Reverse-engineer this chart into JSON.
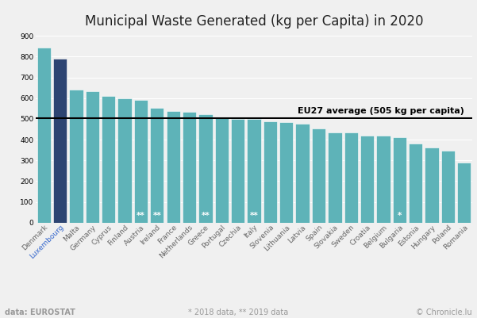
{
  "title": "Municipal Waste Generated (kg per Capita) in 2020",
  "categories": [
    "Denmark",
    "Luxembourg",
    "Malta",
    "Germany",
    "Cyprus",
    "Finland",
    "Austria",
    "Ireland",
    "France",
    "Netherlands",
    "Greece",
    "Portugal",
    "Czechia",
    "Italy",
    "Slovenia",
    "Lithuania",
    "Latvia",
    "Spain",
    "Slovakia",
    "Sweden",
    "Croatia",
    "Belgium",
    "Bulgaria",
    "Estonia",
    "Hungary",
    "Poland",
    "Romania"
  ],
  "values": [
    845,
    790,
    643,
    632,
    609,
    601,
    592,
    554,
    537,
    534,
    524,
    506,
    500,
    500,
    488,
    483,
    477,
    455,
    435,
    433,
    420,
    418,
    410,
    383,
    363,
    347,
    290
  ],
  "bar_color_teal": "#5eb3b8",
  "bar_color_highlight": "#2d4472",
  "highlight_index": 1,
  "eu27_average": 505,
  "eu27_label": "EU27 average (505 kg per capita)",
  "annotations": {
    "6": "**",
    "7": "**",
    "10": "**",
    "13": "**",
    "22": "*"
  },
  "ylabel_ticks": [
    0,
    100,
    200,
    300,
    400,
    500,
    600,
    700,
    800,
    900
  ],
  "ylim": [
    0,
    920
  ],
  "background_color": "#f0f0f0",
  "footer_left": "data: EUROSTAT",
  "footer_center": "* 2018 data, ** 2019 data",
  "footer_right": "© Chronicle.lu",
  "title_fontsize": 12,
  "tick_fontsize": 6.5,
  "annotation_color": "white",
  "eu27_label_fontsize": 8,
  "footer_fontsize": 7
}
